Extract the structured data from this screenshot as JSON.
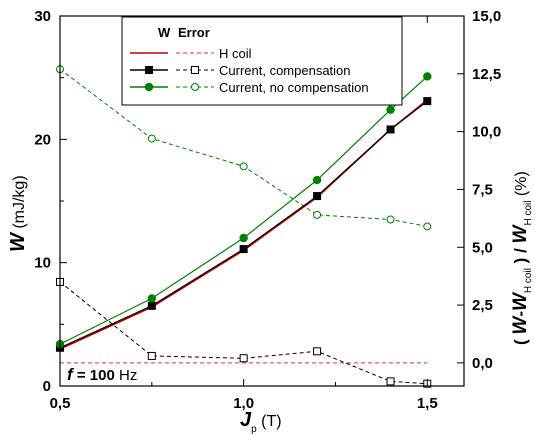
{
  "chart_data": {
    "type": "line",
    "x_axis": {
      "label_symbol": "J",
      "label_subscript": "p",
      "label_unit": "(T)",
      "ticks": [
        "0,5",
        "1,0",
        "1,5"
      ],
      "tick_values": [
        0.5,
        1.0,
        1.5
      ],
      "range": [
        0.5,
        1.6
      ]
    },
    "y_left": {
      "label_symbol": "W",
      "label_unit": "(mJ/kg)",
      "ticks": [
        "0",
        "10",
        "20",
        "30"
      ],
      "tick_values": [
        0,
        10,
        20,
        30
      ],
      "range": [
        0,
        30
      ]
    },
    "y_right": {
      "label_parts": [
        "(",
        "W",
        "-",
        "W",
        "H coil",
        ")",
        " / ",
        "W",
        "H coil",
        "(%)"
      ],
      "ticks": [
        "0,0",
        "2,5",
        "5,0",
        "7,5",
        "10,0",
        "12,5",
        "15,0"
      ],
      "tick_values": [
        0,
        2.5,
        5,
        7.5,
        10,
        12.5,
        15
      ],
      "range": [
        -1,
        15
      ]
    },
    "legend": {
      "header_w": "W",
      "header_error": "Error",
      "placement": "top-center",
      "entries": [
        "H coil",
        "Current, compensation",
        "Current, no compensation"
      ]
    },
    "annotation": {
      "prefix": "f",
      "equals": " = ",
      "value": "100",
      "unit": " Hz"
    },
    "series": [
      {
        "name": "H coil",
        "axis": "left",
        "style": "solid",
        "marker": "none",
        "color": "#cc0000",
        "x": [
          0.5,
          0.75,
          1.0,
          1.2,
          1.4,
          1.5
        ],
        "y": [
          3.0,
          6.4,
          11.0,
          15.3,
          20.8,
          23.2
        ]
      },
      {
        "name": "Current, compensation",
        "axis": "left",
        "style": "solid",
        "marker": "filled-square",
        "color": "#000000",
        "x": [
          0.5,
          0.75,
          1.0,
          1.2,
          1.4,
          1.5
        ],
        "y": [
          3.1,
          6.5,
          11.1,
          15.4,
          20.8,
          23.1
        ]
      },
      {
        "name": "Current, no compensation",
        "axis": "left",
        "style": "solid",
        "marker": "filled-circle",
        "color": "#008000",
        "x": [
          0.5,
          0.75,
          1.0,
          1.2,
          1.4,
          1.5
        ],
        "y": [
          3.4,
          7.1,
          12.0,
          16.7,
          22.4,
          25.1
        ]
      },
      {
        "name": "H coil",
        "axis": "right",
        "style": "dashed",
        "marker": "none",
        "color": "#e03030",
        "x": [
          0.5,
          1.5
        ],
        "y": [
          0.0,
          0.0
        ]
      },
      {
        "name": "Current, compensation",
        "axis": "right",
        "style": "dashed",
        "marker": "open-square",
        "color": "#000000",
        "x": [
          0.5,
          0.75,
          1.0,
          1.2,
          1.4,
          1.5
        ],
        "y": [
          3.5,
          0.3,
          0.2,
          0.5,
          -0.8,
          -0.9
        ]
      },
      {
        "name": "Current, no compensation",
        "axis": "right",
        "style": "dashed",
        "marker": "open-circle",
        "color": "#008000",
        "x": [
          0.5,
          0.75,
          1.0,
          1.2,
          1.4,
          1.5
        ],
        "y": [
          12.7,
          9.7,
          8.5,
          6.4,
          6.2,
          5.9
        ]
      }
    ]
  }
}
